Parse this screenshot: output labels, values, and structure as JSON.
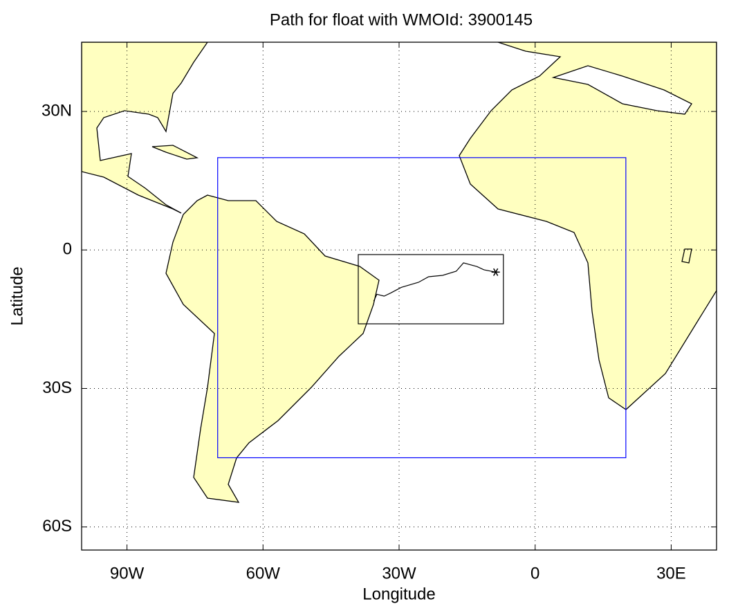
{
  "chart_data": {
    "type": "map",
    "title": "Path for float with WMOId: 3900145",
    "xlabel": "Longitude",
    "ylabel": "Latitude",
    "xlim": [
      -100,
      40
    ],
    "ylim": [
      -65,
      45
    ],
    "xticks": [
      {
        "value": -90,
        "label": "90W"
      },
      {
        "value": -60,
        "label": "60W"
      },
      {
        "value": -30,
        "label": "30W"
      },
      0,
      {
        "value": 30,
        "label": "30E"
      }
    ],
    "yticks": [
      {
        "value": 30,
        "label": "30N"
      },
      0,
      {
        "value": -30,
        "label": "30S"
      },
      {
        "value": -60,
        "label": "60S"
      }
    ],
    "grid": true,
    "land_color": "#ffffc0",
    "regions": [
      {
        "color": "#0000ff",
        "lon": [
          -70,
          20
        ],
        "lat": [
          -45,
          20
        ]
      },
      {
        "color": "#000000",
        "lon": [
          -39,
          -7
        ],
        "lat": [
          -16,
          -1
        ]
      }
    ],
    "series": [
      {
        "color": "#000000",
        "x": [
          -8.7,
          -11.3,
          -12.8,
          -15.8,
          -17.4,
          -20.4,
          -23.5,
          -25.7,
          -29.5,
          -31.8,
          -33.3,
          -34.9,
          -35.6
        ],
        "values": [
          -4.8,
          -4.3,
          -3.6,
          -2.8,
          -4.6,
          -5.5,
          -5.8,
          -7.0,
          -8.1,
          -9.3,
          -10.0,
          -9.6,
          -11.1
        ]
      }
    ]
  }
}
